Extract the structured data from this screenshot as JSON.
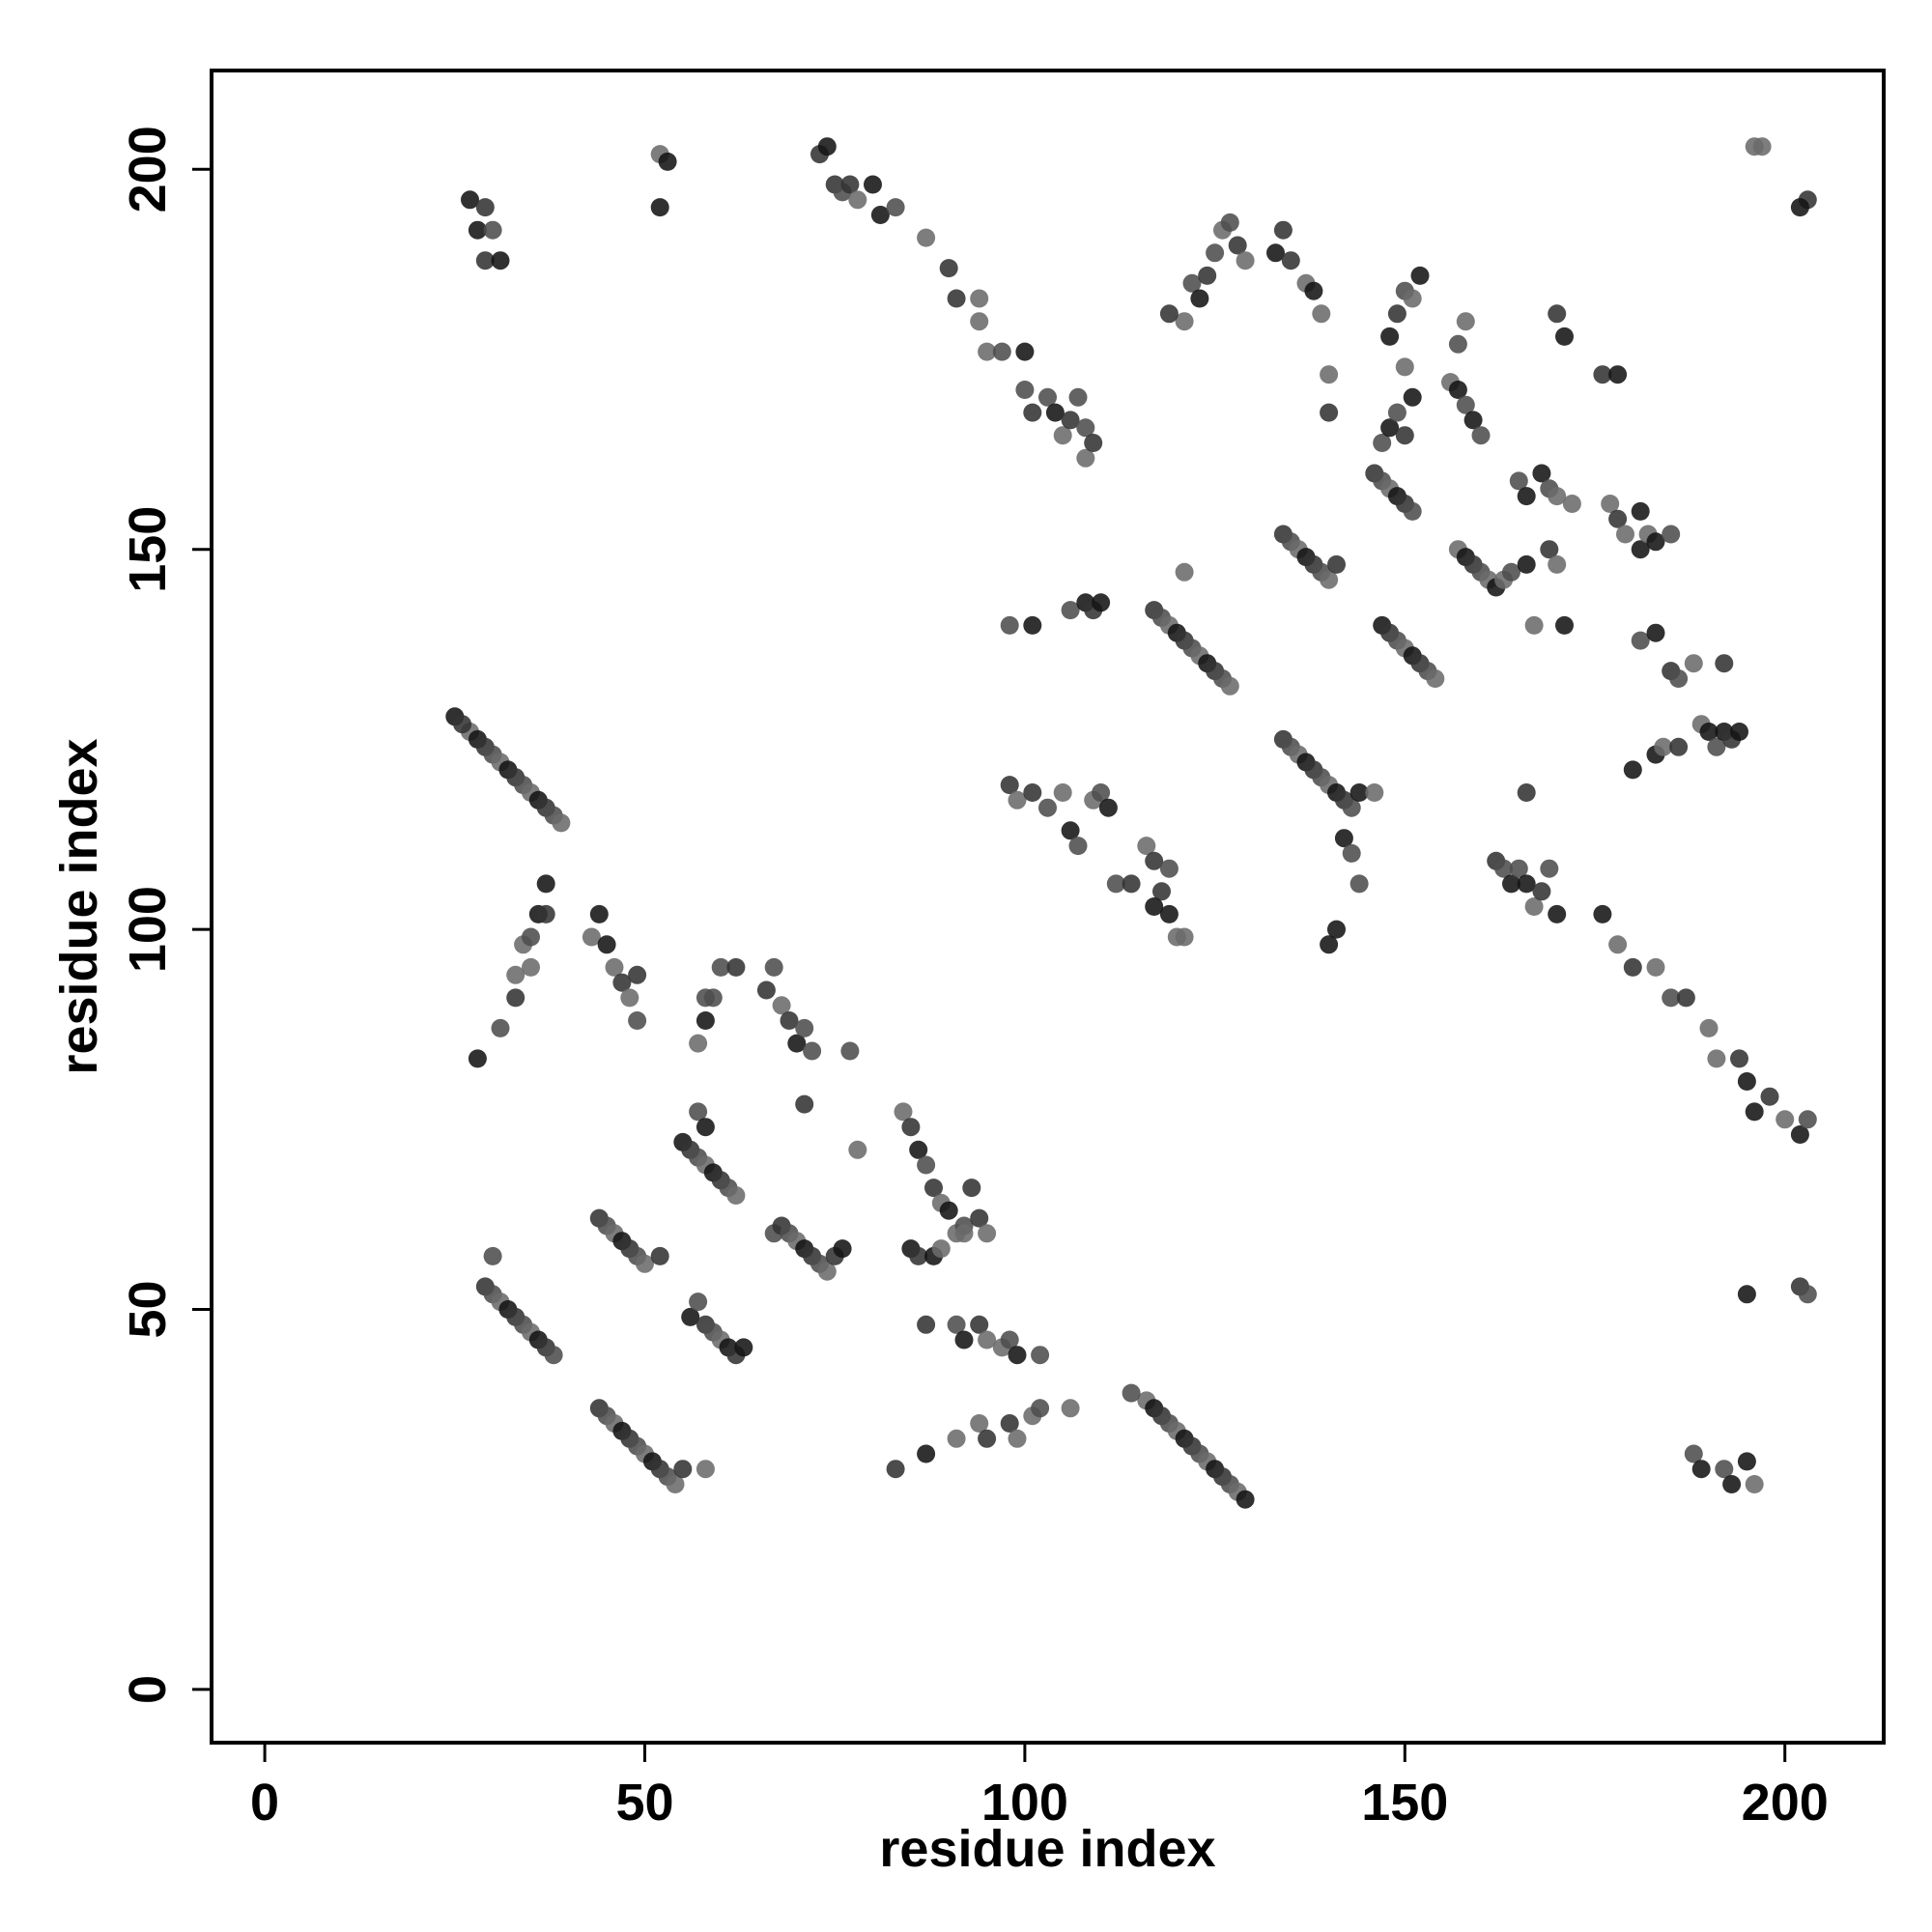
{
  "chart_data": {
    "type": "scatter",
    "title": "",
    "xlabel": "residue index",
    "ylabel": "residue index",
    "xlim": [
      -7,
      213
    ],
    "ylim": [
      -7,
      213
    ],
    "xticks": [
      0,
      50,
      100,
      150,
      200
    ],
    "yticks": [
      0,
      50,
      100,
      150,
      200
    ],
    "grid": false,
    "legend": "none",
    "point_colors": [
      "#141414",
      "#333333",
      "#4d4d4d",
      "#6b6b6b"
    ],
    "points": [
      [
        27,
        126
      ],
      [
        28,
        125
      ],
      [
        29,
        124
      ],
      [
        30,
        123
      ],
      [
        31,
        122
      ],
      [
        32,
        121
      ],
      [
        33,
        120
      ],
      [
        34,
        119
      ],
      [
        35,
        118
      ],
      [
        36,
        117
      ],
      [
        37,
        116
      ],
      [
        38,
        115
      ],
      [
        39,
        114
      ],
      [
        25,
        128
      ],
      [
        26,
        127
      ],
      [
        29,
        53
      ],
      [
        30,
        52
      ],
      [
        31,
        51
      ],
      [
        32,
        50
      ],
      [
        33,
        49
      ],
      [
        34,
        48
      ],
      [
        35,
        47
      ],
      [
        36,
        46
      ],
      [
        37,
        45
      ],
      [
        38,
        44
      ],
      [
        30,
        57
      ],
      [
        44,
        37
      ],
      [
        45,
        36
      ],
      [
        46,
        35
      ],
      [
        47,
        34
      ],
      [
        48,
        33
      ],
      [
        49,
        32
      ],
      [
        50,
        31
      ],
      [
        51,
        30
      ],
      [
        52,
        29
      ],
      [
        53,
        28
      ],
      [
        54,
        27
      ],
      [
        55,
        29
      ],
      [
        58,
        29
      ],
      [
        44,
        62
      ],
      [
        45,
        61
      ],
      [
        46,
        60
      ],
      [
        47,
        59
      ],
      [
        48,
        58
      ],
      [
        49,
        57
      ],
      [
        50,
        56
      ],
      [
        52,
        57
      ],
      [
        55,
        72
      ],
      [
        56,
        71
      ],
      [
        57,
        70
      ],
      [
        58,
        69
      ],
      [
        59,
        68
      ],
      [
        60,
        67
      ],
      [
        61,
        66
      ],
      [
        62,
        65
      ],
      [
        57,
        76
      ],
      [
        58,
        74
      ],
      [
        56,
        49
      ],
      [
        57,
        51
      ],
      [
        58,
        48
      ],
      [
        59,
        47
      ],
      [
        60,
        46
      ],
      [
        61,
        45
      ],
      [
        62,
        44
      ],
      [
        63,
        45
      ],
      [
        67,
        60
      ],
      [
        68,
        61
      ],
      [
        69,
        60
      ],
      [
        70,
        59
      ],
      [
        71,
        58
      ],
      [
        72,
        57
      ],
      [
        73,
        56
      ],
      [
        74,
        55
      ],
      [
        75,
        57
      ],
      [
        76,
        58
      ],
      [
        27,
        196
      ],
      [
        28,
        192
      ],
      [
        29,
        195
      ],
      [
        29,
        188
      ],
      [
        31,
        188
      ],
      [
        30,
        192
      ],
      [
        52,
        202
      ],
      [
        53,
        201
      ],
      [
        52,
        195
      ],
      [
        73,
        202
      ],
      [
        74,
        203
      ],
      [
        75,
        198
      ],
      [
        76,
        197
      ],
      [
        77,
        198
      ],
      [
        78,
        196
      ],
      [
        80,
        198
      ],
      [
        81,
        194
      ],
      [
        83,
        195
      ],
      [
        87,
        191
      ],
      [
        90,
        187
      ],
      [
        91,
        183
      ],
      [
        94,
        183
      ],
      [
        94,
        180
      ],
      [
        95,
        176
      ],
      [
        97,
        176
      ],
      [
        100,
        176
      ],
      [
        100,
        171
      ],
      [
        101,
        168
      ],
      [
        103,
        170
      ],
      [
        104,
        168
      ],
      [
        105,
        165
      ],
      [
        106,
        167
      ],
      [
        107,
        170
      ],
      [
        108,
        166
      ],
      [
        108,
        162
      ],
      [
        109,
        164
      ],
      [
        28,
        83
      ],
      [
        31,
        87
      ],
      [
        33,
        91
      ],
      [
        33,
        94
      ],
      [
        34,
        98
      ],
      [
        35,
        99
      ],
      [
        35,
        95
      ],
      [
        36,
        102
      ],
      [
        37,
        106
      ],
      [
        37,
        102
      ],
      [
        43,
        99
      ],
      [
        44,
        102
      ],
      [
        45,
        98
      ],
      [
        46,
        95
      ],
      [
        47,
        93
      ],
      [
        48,
        91
      ],
      [
        49,
        88
      ],
      [
        49,
        94
      ],
      [
        57,
        85
      ],
      [
        58,
        88
      ],
      [
        58,
        91
      ],
      [
        59,
        91
      ],
      [
        60,
        95
      ],
      [
        62,
        95
      ],
      [
        66,
        92
      ],
      [
        67,
        95
      ],
      [
        68,
        90
      ],
      [
        69,
        88
      ],
      [
        70,
        85
      ],
      [
        71,
        87
      ],
      [
        71,
        77
      ],
      [
        72,
        84
      ],
      [
        77,
        84
      ],
      [
        78,
        71
      ],
      [
        83,
        29
      ],
      [
        87,
        31
      ],
      [
        91,
        33
      ],
      [
        94,
        35
      ],
      [
        95,
        33
      ],
      [
        98,
        35
      ],
      [
        99,
        33
      ],
      [
        101,
        36
      ],
      [
        102,
        37
      ],
      [
        106,
        37
      ],
      [
        84,
        76
      ],
      [
        85,
        74
      ],
      [
        86,
        71
      ],
      [
        87,
        69
      ],
      [
        88,
        66
      ],
      [
        89,
        64
      ],
      [
        90,
        63
      ],
      [
        91,
        60
      ],
      [
        92,
        61
      ],
      [
        93,
        66
      ],
      [
        94,
        62
      ],
      [
        95,
        60
      ],
      [
        85,
        58
      ],
      [
        86,
        57
      ],
      [
        88,
        57
      ],
      [
        89,
        58
      ],
      [
        92,
        60
      ],
      [
        87,
        48
      ],
      [
        91,
        48
      ],
      [
        92,
        46
      ],
      [
        94,
        48
      ],
      [
        95,
        46
      ],
      [
        97,
        45
      ],
      [
        98,
        46
      ],
      [
        99,
        44
      ],
      [
        102,
        44
      ],
      [
        116,
        38
      ],
      [
        117,
        37
      ],
      [
        118,
        36
      ],
      [
        119,
        35
      ],
      [
        120,
        34
      ],
      [
        121,
        33
      ],
      [
        122,
        32
      ],
      [
        123,
        31
      ],
      [
        124,
        30
      ],
      [
        125,
        29
      ],
      [
        126,
        28
      ],
      [
        127,
        27
      ],
      [
        128,
        26
      ],
      [
        129,
        25
      ],
      [
        114,
        39
      ],
      [
        117,
        142
      ],
      [
        118,
        141
      ],
      [
        119,
        140
      ],
      [
        120,
        139
      ],
      [
        121,
        138
      ],
      [
        122,
        137
      ],
      [
        123,
        136
      ],
      [
        124,
        135
      ],
      [
        125,
        134
      ],
      [
        126,
        133
      ],
      [
        127,
        132
      ],
      [
        121,
        147
      ],
      [
        134,
        125
      ],
      [
        135,
        124
      ],
      [
        136,
        123
      ],
      [
        137,
        122
      ],
      [
        138,
        121
      ],
      [
        139,
        120
      ],
      [
        140,
        119
      ],
      [
        141,
        118
      ],
      [
        142,
        117
      ],
      [
        143,
        116
      ],
      [
        144,
        118
      ],
      [
        134,
        152
      ],
      [
        135,
        151
      ],
      [
        136,
        150
      ],
      [
        137,
        149
      ],
      [
        138,
        148
      ],
      [
        139,
        147
      ],
      [
        140,
        146
      ],
      [
        141,
        148
      ],
      [
        147,
        140
      ],
      [
        148,
        139
      ],
      [
        149,
        138
      ],
      [
        150,
        137
      ],
      [
        151,
        136
      ],
      [
        152,
        135
      ],
      [
        153,
        134
      ],
      [
        154,
        133
      ],
      [
        146,
        160
      ],
      [
        147,
        159
      ],
      [
        148,
        158
      ],
      [
        149,
        157
      ],
      [
        150,
        156
      ],
      [
        151,
        155
      ],
      [
        147,
        164
      ],
      [
        148,
        166
      ],
      [
        149,
        168
      ],
      [
        150,
        165
      ],
      [
        151,
        170
      ],
      [
        157,
        150
      ],
      [
        158,
        149
      ],
      [
        159,
        148
      ],
      [
        160,
        147
      ],
      [
        161,
        146
      ],
      [
        162,
        145
      ],
      [
        163,
        146
      ],
      [
        164,
        147
      ],
      [
        166,
        148
      ],
      [
        156,
        172
      ],
      [
        157,
        171
      ],
      [
        158,
        169
      ],
      [
        159,
        167
      ],
      [
        160,
        165
      ],
      [
        157,
        177
      ],
      [
        158,
        180
      ],
      [
        148,
        178
      ],
      [
        149,
        181
      ],
      [
        150,
        184
      ],
      [
        151,
        183
      ],
      [
        152,
        186
      ],
      [
        150,
        174
      ],
      [
        125,
        189
      ],
      [
        126,
        192
      ],
      [
        127,
        193
      ],
      [
        128,
        190
      ],
      [
        129,
        188
      ],
      [
        122,
        185
      ],
      [
        123,
        183
      ],
      [
        124,
        186
      ],
      [
        121,
        180
      ],
      [
        119,
        181
      ],
      [
        133,
        189
      ],
      [
        134,
        192
      ],
      [
        135,
        188
      ],
      [
        137,
        185
      ],
      [
        138,
        184
      ],
      [
        139,
        181
      ],
      [
        140,
        173
      ],
      [
        140,
        168
      ],
      [
        165,
        159
      ],
      [
        166,
        157
      ],
      [
        168,
        160
      ],
      [
        169,
        158
      ],
      [
        170,
        157
      ],
      [
        172,
        156
      ],
      [
        177,
        156
      ],
      [
        178,
        154
      ],
      [
        179,
        152
      ],
      [
        181,
        150
      ],
      [
        181,
        155
      ],
      [
        182,
        152
      ],
      [
        183,
        151
      ],
      [
        185,
        152
      ],
      [
        170,
        181
      ],
      [
        171,
        178
      ],
      [
        176,
        173
      ],
      [
        178,
        173
      ],
      [
        169,
        150
      ],
      [
        170,
        148
      ],
      [
        167,
        140
      ],
      [
        171,
        140
      ],
      [
        98,
        140
      ],
      [
        101,
        140
      ],
      [
        106,
        142
      ],
      [
        108,
        143
      ],
      [
        109,
        142
      ],
      [
        110,
        143
      ],
      [
        98,
        119
      ],
      [
        99,
        117
      ],
      [
        101,
        118
      ],
      [
        103,
        116
      ],
      [
        105,
        118
      ],
      [
        106,
        113
      ],
      [
        107,
        111
      ],
      [
        109,
        117
      ],
      [
        110,
        118
      ],
      [
        111,
        116
      ],
      [
        112,
        106
      ],
      [
        114,
        106
      ],
      [
        116,
        111
      ],
      [
        117,
        109
      ],
      [
        118,
        105
      ],
      [
        119,
        102
      ],
      [
        120,
        99
      ],
      [
        121,
        99
      ],
      [
        117,
        103
      ],
      [
        119,
        108
      ],
      [
        142,
        112
      ],
      [
        143,
        110
      ],
      [
        144,
        106
      ],
      [
        141,
        100
      ],
      [
        140,
        98
      ],
      [
        146,
        118
      ],
      [
        162,
        109
      ],
      [
        163,
        108
      ],
      [
        164,
        106
      ],
      [
        165,
        108
      ],
      [
        166,
        106
      ],
      [
        167,
        103
      ],
      [
        168,
        105
      ],
      [
        169,
        108
      ],
      [
        170,
        102
      ],
      [
        166,
        118
      ],
      [
        176,
        102
      ],
      [
        178,
        98
      ],
      [
        180,
        95
      ],
      [
        183,
        95
      ],
      [
        185,
        91
      ],
      [
        187,
        91
      ],
      [
        190,
        87
      ],
      [
        191,
        83
      ],
      [
        194,
        83
      ],
      [
        195,
        80
      ],
      [
        196,
        76
      ],
      [
        198,
        78
      ],
      [
        200,
        75
      ],
      [
        202,
        73
      ],
      [
        203,
        75
      ],
      [
        180,
        121
      ],
      [
        183,
        123
      ],
      [
        184,
        124
      ],
      [
        185,
        134
      ],
      [
        186,
        133
      ],
      [
        188,
        135
      ],
      [
        189,
        127
      ],
      [
        190,
        126
      ],
      [
        191,
        124
      ],
      [
        192,
        126
      ],
      [
        193,
        125
      ],
      [
        194,
        126
      ],
      [
        181,
        138
      ],
      [
        183,
        139
      ],
      [
        186,
        124
      ],
      [
        192,
        135
      ],
      [
        188,
        31
      ],
      [
        189,
        29
      ],
      [
        192,
        29
      ],
      [
        193,
        27
      ],
      [
        195,
        30
      ],
      [
        196,
        27
      ],
      [
        195,
        52
      ],
      [
        202,
        53
      ],
      [
        203,
        52
      ],
      [
        196,
        203
      ],
      [
        197,
        203
      ],
      [
        203,
        196
      ],
      [
        202,
        195
      ]
    ]
  }
}
